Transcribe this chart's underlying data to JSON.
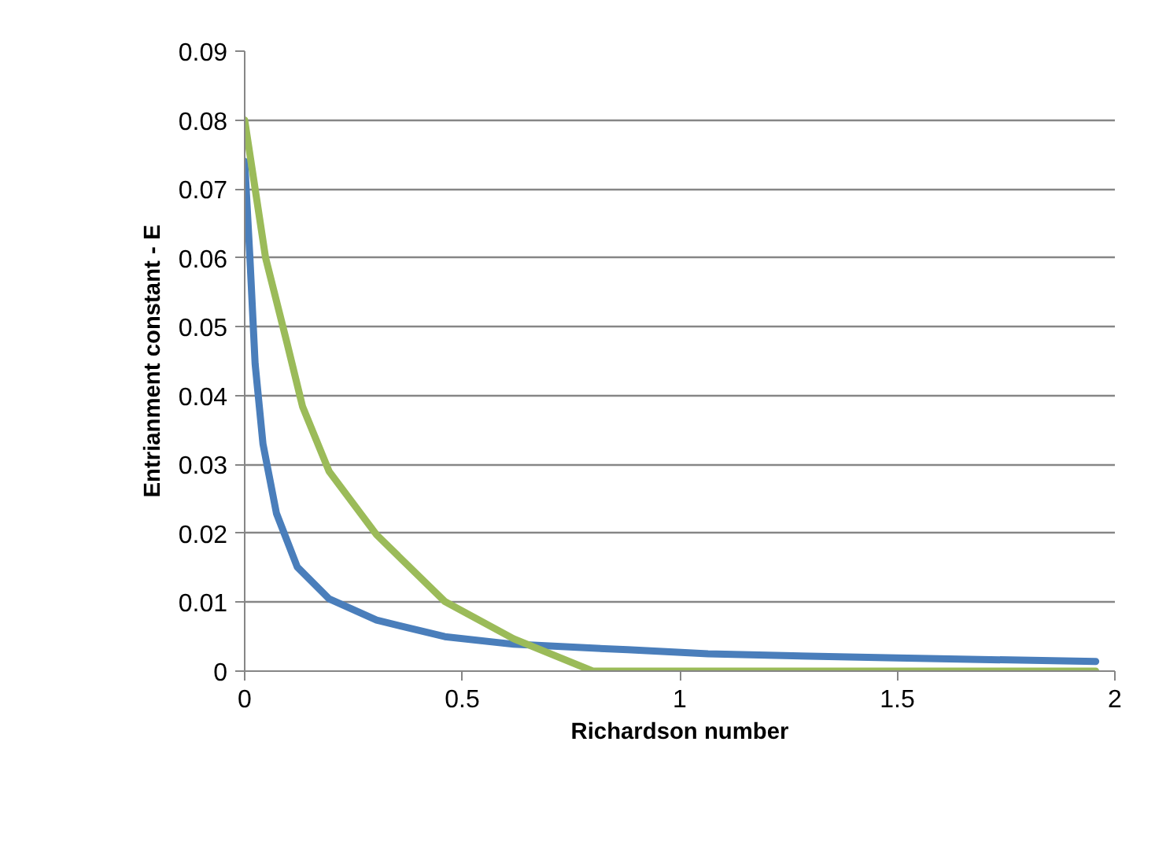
{
  "chart_data": {
    "type": "line",
    "xlabel": "Richardson number",
    "ylabel": "Entrianment constant - E",
    "xlim": [
      0,
      2
    ],
    "ylim": [
      0,
      0.09
    ],
    "xticks": [
      0,
      {
        "value": 0.5,
        "label": "0.5"
      },
      1,
      {
        "value": 1.5,
        "label": "1.5"
      },
      2
    ],
    "yticks": [
      0,
      0.01,
      0.02,
      0.03,
      0.04,
      0.05,
      0.06,
      0.07,
      0.08,
      0.09
    ],
    "grid": "y",
    "marker": "none",
    "line_style": "solid",
    "series": [
      {
        "color": "#4a7ebb",
        "x": [
          0,
          0.006,
          0.012,
          0.024,
          0.042,
          0.073,
          0.121,
          0.194,
          0.303,
          0.46,
          0.618,
          0.88,
          1.065,
          1.5,
          1.956
        ],
        "values": [
          0.074,
          0.067,
          0.06,
          0.0446,
          0.033,
          0.0229,
          0.0151,
          0.0105,
          0.0074,
          0.005,
          0.0039,
          0.0031,
          0.0025,
          0.0019,
          0.0014
        ]
      },
      {
        "color": "#9bbb59",
        "x": [
          0,
          0.048,
          0.097,
          0.133,
          0.194,
          0.303,
          0.46,
          0.618,
          0.8,
          1.956
        ],
        "values": [
          0.08,
          0.06,
          0.0477,
          0.0384,
          0.029,
          0.0198,
          0.0101,
          0.0047,
          0,
          0
        ]
      }
    ]
  }
}
